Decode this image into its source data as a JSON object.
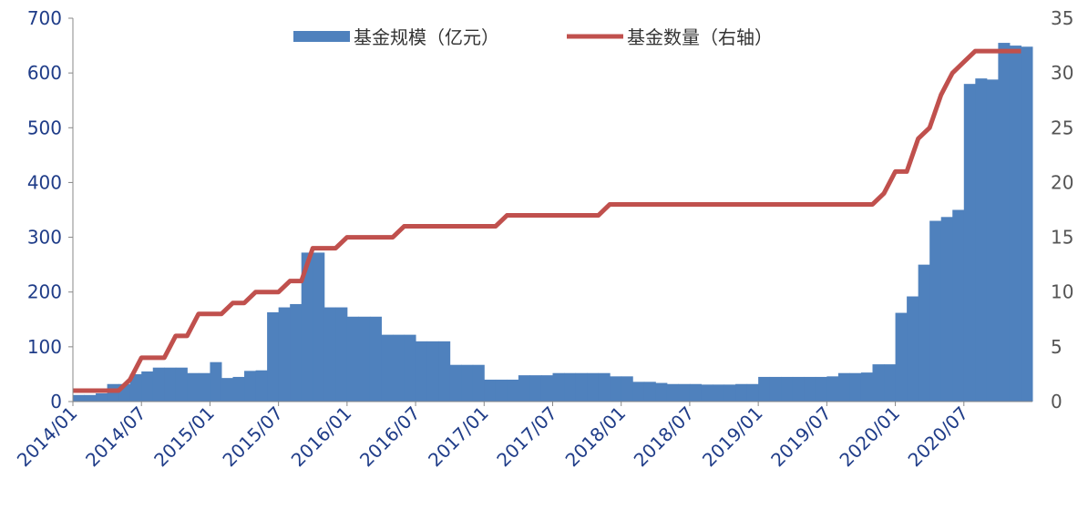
{
  "chart_data": {
    "type": "bar-line",
    "categories": [
      "2014/01",
      null,
      null,
      null,
      null,
      null,
      "2014/07",
      null,
      null,
      null,
      null,
      null,
      "2015/01",
      null,
      null,
      null,
      null,
      null,
      "2015/07",
      null,
      null,
      null,
      null,
      null,
      "2016/01",
      null,
      null,
      null,
      null,
      null,
      "2016/07",
      null,
      null,
      null,
      null,
      null,
      "2017/01",
      null,
      null,
      null,
      null,
      null,
      "2017/07",
      null,
      null,
      null,
      null,
      null,
      "2018/01",
      null,
      null,
      null,
      null,
      null,
      "2018/07",
      null,
      null,
      null,
      null,
      null,
      "2019/01",
      null,
      null,
      null,
      null,
      null,
      "2019/07",
      null,
      null,
      null,
      null,
      null,
      "2020/01",
      null,
      null,
      null,
      null,
      null,
      "2020/07",
      null,
      null,
      null,
      null,
      null
    ],
    "series": [
      {
        "name": "基金规模（亿元）",
        "type": "bar",
        "color": "#4f81bd",
        "values": [
          12,
          12,
          15,
          32,
          32,
          50,
          55,
          62,
          62,
          62,
          52,
          52,
          72,
          43,
          45,
          56,
          57,
          163,
          172,
          178,
          272,
          272,
          172,
          172,
          155,
          155,
          155,
          122,
          122,
          122,
          110,
          110,
          110,
          67,
          67,
          67,
          40,
          40,
          40,
          48,
          48,
          48,
          52,
          52,
          52,
          52,
          52,
          46,
          46,
          36,
          36,
          34,
          32,
          32,
          32,
          31,
          31,
          31,
          32,
          32,
          45,
          45,
          45,
          45,
          45,
          45,
          46,
          52,
          52,
          53,
          68,
          68,
          162,
          192,
          250,
          330,
          337,
          350,
          580,
          590,
          588,
          655,
          650,
          648
        ]
      },
      {
        "name": "基金数量（右轴）",
        "type": "line",
        "axis": "y2",
        "color": "#c0504d",
        "values": [
          1,
          1,
          1,
          1,
          1,
          2,
          4,
          4,
          4,
          6,
          6,
          8,
          8,
          8,
          9,
          9,
          10,
          10,
          10,
          11,
          11,
          14,
          14,
          14,
          15,
          15,
          15,
          15,
          15,
          16,
          16,
          16,
          16,
          16,
          16,
          16,
          16,
          16,
          17,
          17,
          17,
          17,
          17,
          17,
          17,
          17,
          17,
          18,
          18,
          18,
          18,
          18,
          18,
          18,
          18,
          18,
          18,
          18,
          18,
          18,
          18,
          18,
          18,
          18,
          18,
          18,
          18,
          18,
          18,
          18,
          18,
          19,
          21,
          21,
          24,
          25,
          28,
          30,
          31,
          32,
          32,
          32,
          32,
          32
        ]
      }
    ],
    "ylim": [
      0,
      700
    ],
    "yticks": [
      0,
      100,
      200,
      300,
      400,
      500,
      600,
      700
    ],
    "y2lim": [
      0,
      35
    ],
    "y2ticks": [
      0,
      5,
      10,
      15,
      20,
      25,
      30,
      35
    ]
  }
}
